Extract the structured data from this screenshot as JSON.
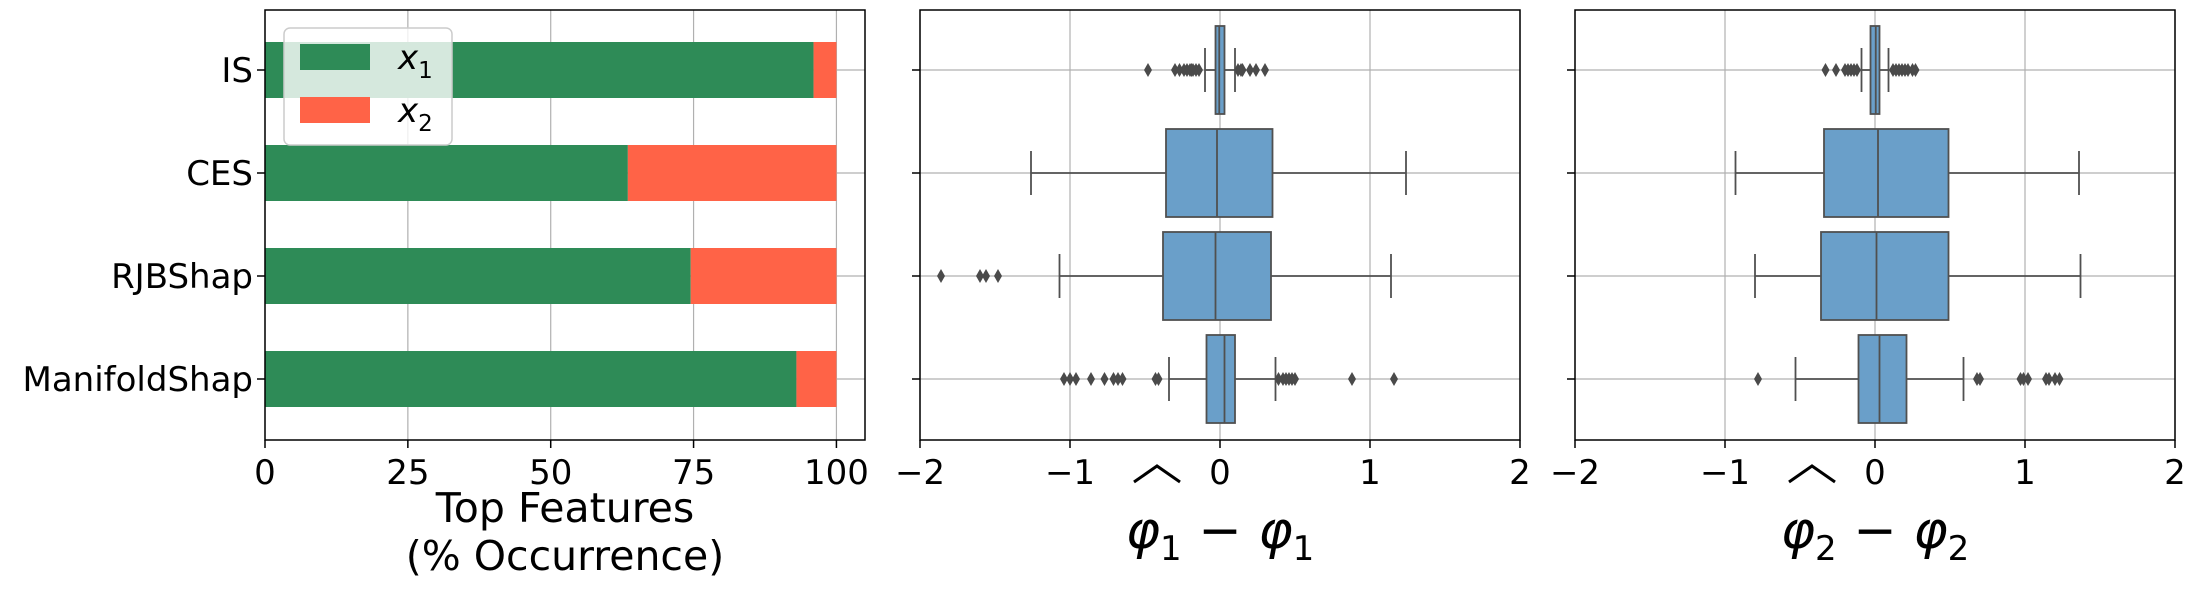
{
  "chart_data": [
    {
      "type": "bar",
      "orientation": "horizontal",
      "stacked": true,
      "categories": [
        "IS",
        "CES",
        "RJBShap",
        "ManifoldShap"
      ],
      "series": [
        {
          "name": "x1",
          "color": "#2e8b57",
          "values": [
            96,
            63.5,
            74.5,
            93
          ]
        },
        {
          "name": "x2",
          "color": "#ff6347",
          "values": [
            4,
            36.5,
            25.5,
            7
          ]
        }
      ],
      "xlim": [
        0,
        105
      ],
      "xticks": [
        0,
        25,
        50,
        75,
        100
      ],
      "xlabel_lines": [
        "Top Features",
        "(% Occurrence)"
      ],
      "legend_position": "top-left",
      "grid": true
    },
    {
      "type": "box",
      "orientation": "horizontal",
      "categories": [
        "IS",
        "CES",
        "RJBShap",
        "ManifoldShap"
      ],
      "xlim": [
        -2,
        2
      ],
      "xticks": [
        -2,
        -1,
        0,
        1,
        2
      ],
      "xlabel": "φ̂1 − φ1",
      "box_color": "#6a9fc9",
      "grid": true,
      "boxes": [
        {
          "category": "IS",
          "q1": -0.03,
          "median": -0.005,
          "q3": 0.03,
          "whisker_low": -0.1,
          "whisker_high": 0.1,
          "outliers": [
            -0.48,
            -0.3,
            -0.27,
            -0.24,
            -0.22,
            -0.2,
            -0.19,
            -0.18,
            -0.16,
            -0.14,
            0.12,
            0.14,
            0.15,
            0.2,
            0.24,
            0.3
          ]
        },
        {
          "category": "CES",
          "q1": -0.36,
          "median": -0.02,
          "q3": 0.35,
          "whisker_low": -1.26,
          "whisker_high": 1.24,
          "outliers": []
        },
        {
          "category": "RJBShap",
          "q1": -0.38,
          "median": -0.03,
          "q3": 0.34,
          "whisker_low": -1.07,
          "whisker_high": 1.14,
          "outliers": [
            -1.86,
            -1.6,
            -1.56,
            -1.48
          ]
        },
        {
          "category": "ManifoldShap",
          "q1": -0.09,
          "median": 0.03,
          "q3": 0.1,
          "whisker_low": -0.34,
          "whisker_high": 0.37,
          "outliers": [
            -1.04,
            -1.0,
            -0.96,
            -0.86,
            -0.77,
            -0.71,
            -0.68,
            -0.65,
            -0.43,
            -0.41,
            0.39,
            0.42,
            0.44,
            0.46,
            0.48,
            0.5,
            0.88,
            1.16
          ]
        }
      ]
    },
    {
      "type": "box",
      "orientation": "horizontal",
      "categories": [
        "IS",
        "CES",
        "RJBShap",
        "ManifoldShap"
      ],
      "xlim": [
        -2,
        2
      ],
      "xticks": [
        -2,
        -1,
        0,
        1,
        2
      ],
      "xlabel": "φ̂2 − φ2",
      "box_color": "#6a9fc9",
      "grid": true,
      "boxes": [
        {
          "category": "IS",
          "q1": -0.03,
          "median": 0.005,
          "q3": 0.03,
          "whisker_low": -0.09,
          "whisker_high": 0.09,
          "outliers": [
            -0.33,
            -0.26,
            -0.2,
            -0.18,
            -0.16,
            -0.14,
            -0.12,
            0.12,
            0.14,
            0.16,
            0.18,
            0.2,
            0.22,
            0.25,
            0.27
          ]
        },
        {
          "category": "CES",
          "q1": -0.34,
          "median": 0.02,
          "q3": 0.49,
          "whisker_low": -0.93,
          "whisker_high": 1.36,
          "outliers": []
        },
        {
          "category": "RJBShap",
          "q1": -0.36,
          "median": 0.01,
          "q3": 0.49,
          "whisker_low": -0.8,
          "whisker_high": 1.37,
          "outliers": []
        },
        {
          "category": "ManifoldShap",
          "q1": -0.11,
          "median": 0.03,
          "q3": 0.21,
          "whisker_low": -0.53,
          "whisker_high": 0.59,
          "outliers": [
            -0.78,
            0.68,
            0.7,
            0.97,
            0.99,
            1.02,
            1.14,
            1.16,
            1.2,
            1.23
          ]
        }
      ]
    }
  ]
}
